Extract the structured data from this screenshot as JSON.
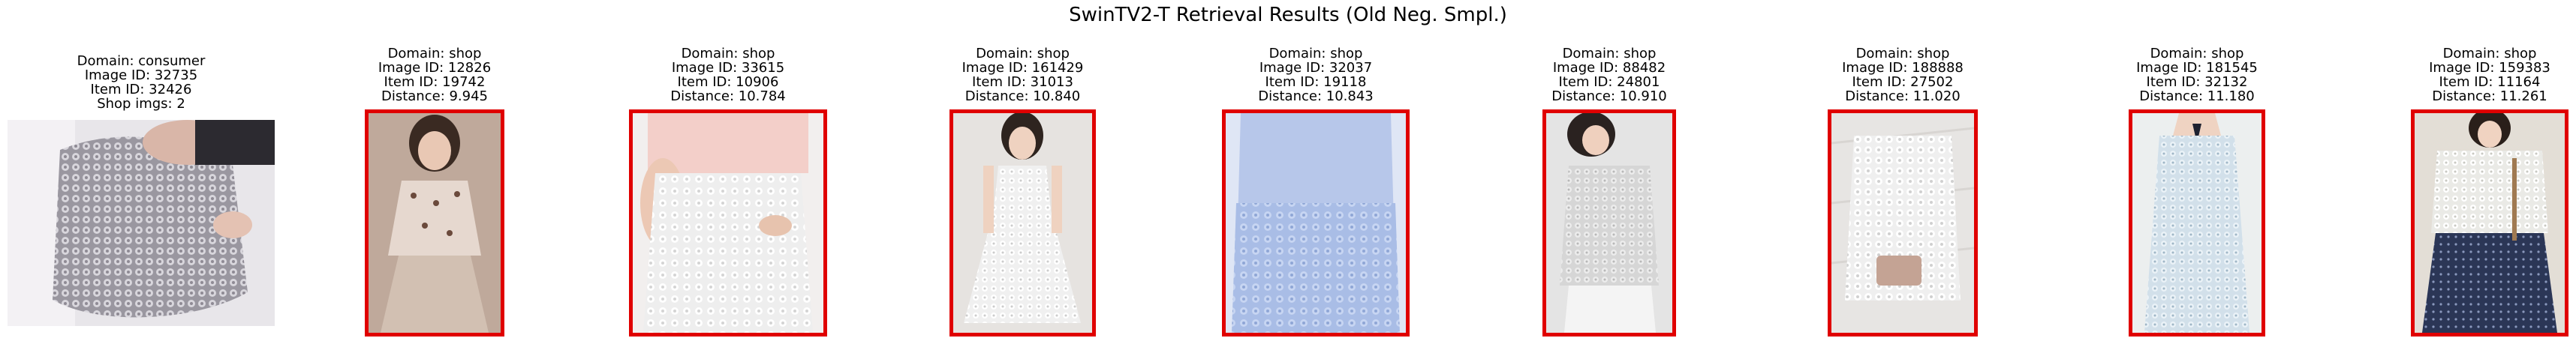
{
  "title": "SwinTV2-T Retrieval Results (Old Neg. Smpl.)",
  "query": {
    "domain": "Domain: consumer",
    "image_id": "Image ID: 32735",
    "item_id": "Item ID: 32426",
    "shop_imgs": "Shop imgs: 2",
    "thumbnail_icon": "lace-skirt-photo"
  },
  "results": [
    {
      "domain": "Domain: shop",
      "image_id": "Image ID: 12826",
      "item_id": "Item ID: 19742",
      "distance": "Distance: 9.945",
      "frame_color": "#e00000"
    },
    {
      "domain": "Domain: shop",
      "image_id": "Image ID: 33615",
      "item_id": "Item ID: 10906",
      "distance": "Distance: 10.784",
      "frame_color": "#e00000"
    },
    {
      "domain": "Domain: shop",
      "image_id": "Image ID: 161429",
      "item_id": "Item ID: 31013",
      "distance": "Distance: 10.840",
      "frame_color": "#e00000"
    },
    {
      "domain": "Domain: shop",
      "image_id": "Image ID: 32037",
      "item_id": "Item ID: 19118",
      "distance": "Distance: 10.843",
      "frame_color": "#e00000"
    },
    {
      "domain": "Domain: shop",
      "image_id": "Image ID: 88482",
      "item_id": "Item ID: 24801",
      "distance": "Distance: 10.910",
      "frame_color": "#e00000"
    },
    {
      "domain": "Domain: shop",
      "image_id": "Image ID: 188888",
      "item_id": "Item ID: 27502",
      "distance": "Distance: 11.020",
      "frame_color": "#e00000"
    },
    {
      "domain": "Domain: shop",
      "image_id": "Image ID: 181545",
      "item_id": "Item ID: 32132",
      "distance": "Distance: 11.180",
      "frame_color": "#e00000"
    },
    {
      "domain": "Domain: shop",
      "image_id": "Image ID: 159383",
      "item_id": "Item ID: 11164",
      "distance": "Distance: 11.261",
      "frame_color": "#e00000"
    }
  ]
}
